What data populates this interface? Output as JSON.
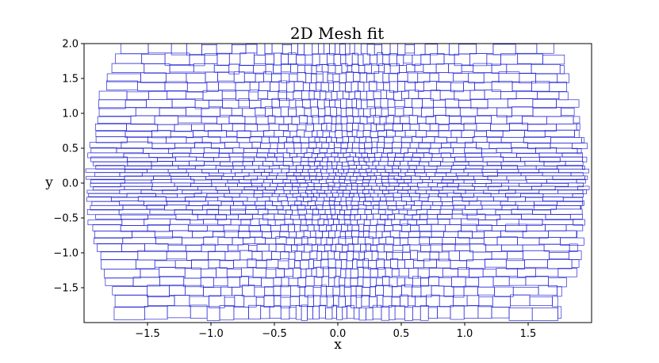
{
  "chart_data": {
    "type": "mesh",
    "title": "2D Mesh fit",
    "xlabel": "x",
    "ylabel": "y",
    "xlim": [
      -2.0,
      2.0
    ],
    "ylim": [
      -2.0,
      2.0
    ],
    "x_ticks": [
      -1.5,
      -1.0,
      -0.5,
      0.0,
      0.5,
      1.0,
      1.5
    ],
    "x_tick_labels": [
      "−1.5",
      "−1.0",
      "−0.5",
      "0.0",
      "0.5",
      "1.0",
      "1.5"
    ],
    "y_ticks": [
      2.0,
      1.5,
      1.0,
      0.5,
      0.0,
      -0.5,
      -1.0,
      -1.5
    ],
    "y_tick_labels": [
      "2.0",
      "1.5",
      "1.0",
      "0.5",
      "0.0",
      "−0.5",
      "−1.0",
      "−1.5"
    ],
    "mesh": {
      "x_extent": [
        -1.95,
        1.95
      ],
      "y_extent": [
        -1.95,
        2.0
      ],
      "row_boundaries_y": [
        2.0,
        1.85,
        1.7,
        1.58,
        1.45,
        1.32,
        1.2,
        1.08,
        0.96,
        0.85,
        0.75,
        0.66,
        0.58,
        0.5,
        0.43,
        0.37,
        0.31,
        0.25,
        0.2,
        0.15,
        0.1,
        0.05,
        0.0,
        -0.05,
        -0.1,
        -0.15,
        -0.2,
        -0.26,
        -0.32,
        -0.38,
        -0.45,
        -0.52,
        -0.6,
        -0.69,
        -0.78,
        -0.88,
        -0.98,
        -1.1,
        -1.22,
        -1.35,
        -1.48,
        -1.62,
        -1.77,
        -1.95
      ],
      "cell_width_center": 0.045,
      "cell_width_edge": 0.26,
      "edge_color": "#2a2ad6",
      "face_color": "none"
    }
  }
}
